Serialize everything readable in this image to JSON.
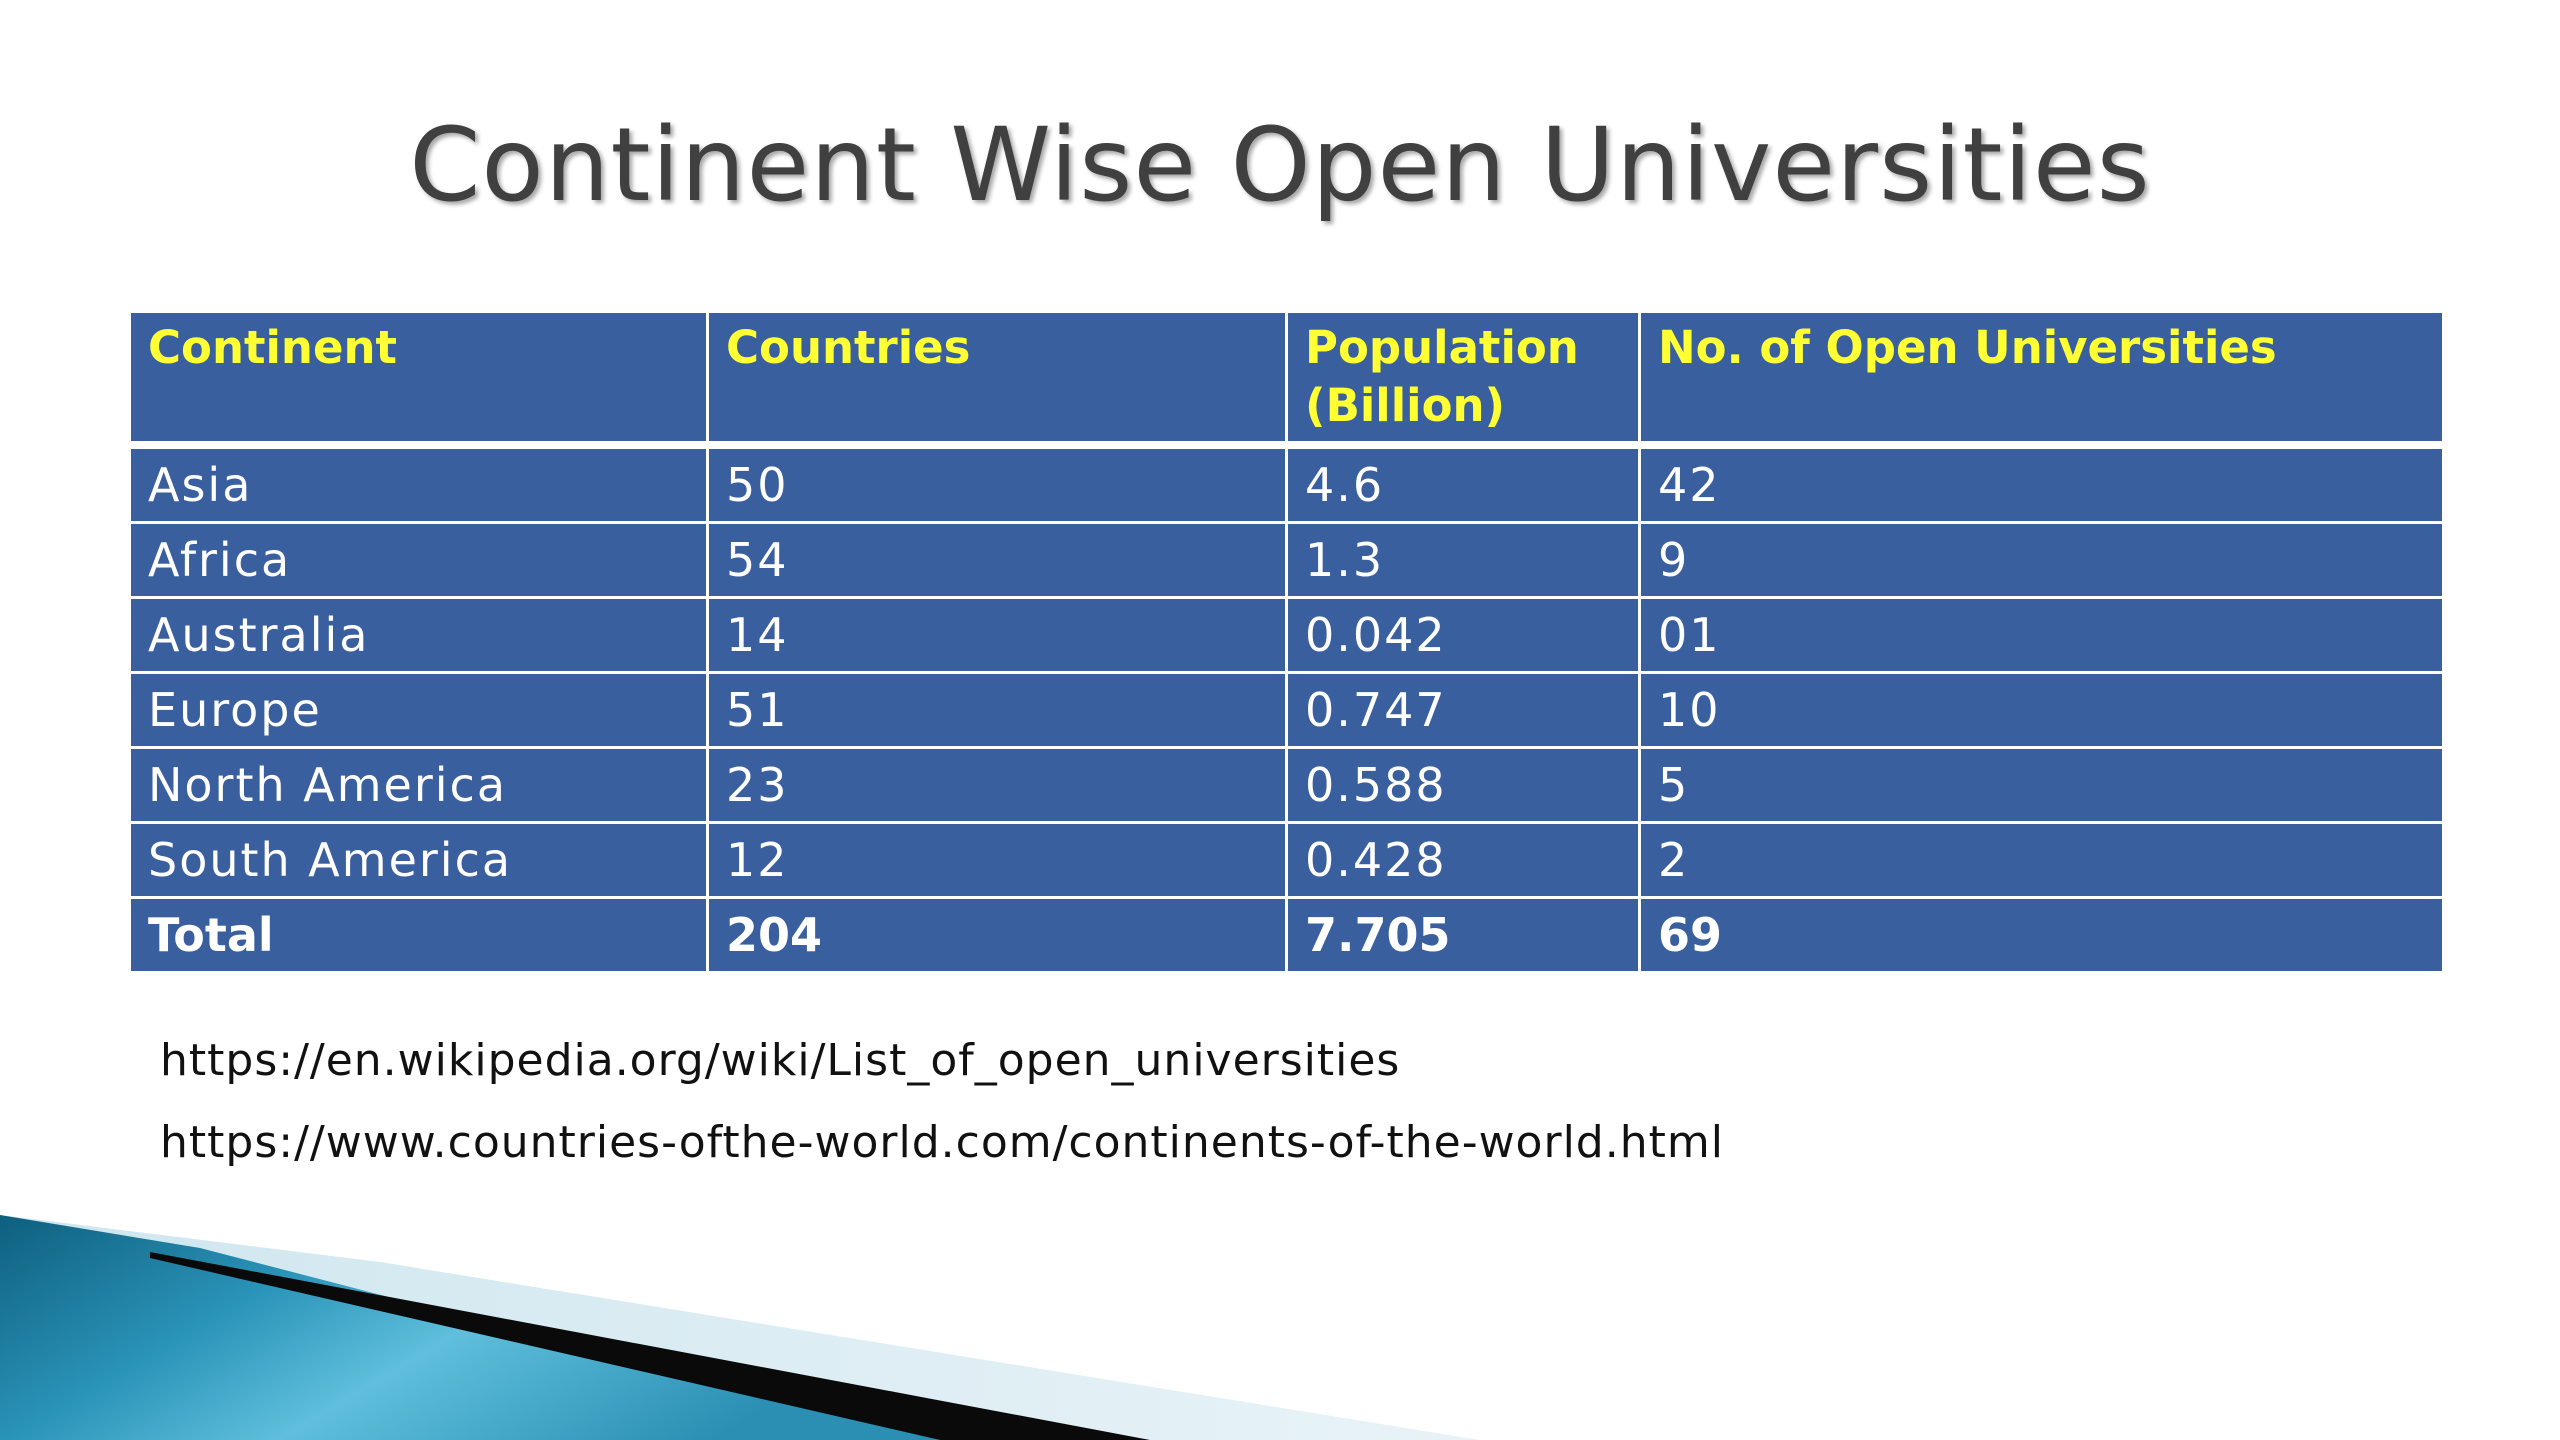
{
  "slide": {
    "title": "Continent Wise Open Universities"
  },
  "table": {
    "headers": [
      "Continent",
      "Countries",
      "Population (Billion)",
      "No. of Open Universities"
    ],
    "rows": [
      [
        "Asia",
        "50",
        "4.6",
        "42"
      ],
      [
        "Africa",
        "54",
        "1.3",
        "9"
      ],
      [
        "Australia",
        "14",
        "0.042",
        "01"
      ],
      [
        "Europe",
        "51",
        "0.747",
        "10"
      ],
      [
        "North America",
        "23",
        "0.588",
        "5"
      ],
      [
        "South America",
        "12",
        "0.428",
        "2"
      ]
    ],
    "total": [
      "Total",
      "204",
      "7.705",
      "69"
    ]
  },
  "sources": [
    "https://en.wikipedia.org/wiki/List_of_open_universities",
    "https://www.countries-ofthe-world.com/continents-of-the-world.html"
  ],
  "colors": {
    "table_fill": "#3a5f9e",
    "header_text": "#ffff33",
    "cell_text": "#ffffff",
    "title_text": "#404040"
  }
}
